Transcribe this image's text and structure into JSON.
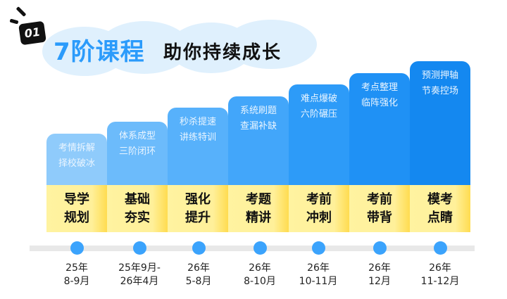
{
  "header": {
    "badge": "01",
    "title": "7阶课程",
    "subtitle": "助你持续成长"
  },
  "colors": {
    "accent": "#2b9bfb",
    "stage_band": "#fff09a",
    "dot": "#3ba3fc"
  },
  "stages": [
    {
      "desc1": "考情拆解",
      "desc2": "择校破冰",
      "name1": "导学",
      "name2": "规划",
      "date1": "25年",
      "date2": "8-9月",
      "color": "#8fcbfb"
    },
    {
      "desc1": "体系成型",
      "desc2": "三阶闭环",
      "name1": "基础",
      "name2": "夯实",
      "date1": "25年9月-",
      "date2": "26年4月",
      "color": "#6cbbfb"
    },
    {
      "desc1": "秒杀提速",
      "desc2": "讲练特训",
      "name1": "强化",
      "name2": "提升",
      "date1": "26年",
      "date2": "5-8月",
      "color": "#57b1fb"
    },
    {
      "desc1": "系统刷题",
      "desc2": "查漏补缺",
      "name1": "考题",
      "name2": "精讲",
      "date1": "26年",
      "date2": "8-10月",
      "color": "#42a6fa"
    },
    {
      "desc1": "难点爆破",
      "desc2": "六阶碾压",
      "name1": "考前",
      "name2": "冲刺",
      "date1": "26年",
      "date2": "10-11月",
      "color": "#2d9bf8"
    },
    {
      "desc1": "考点整理",
      "desc2": "临阵强化",
      "name1": "考前",
      "name2": "带背",
      "date1": "26年",
      "date2": "12月",
      "color": "#1f91f5"
    },
    {
      "desc1": "预测押轴",
      "desc2": "节奏控场",
      "name1": "模考",
      "name2": "点睛",
      "date1": "26年",
      "date2": "11-12月",
      "color": "#1488f0"
    }
  ]
}
